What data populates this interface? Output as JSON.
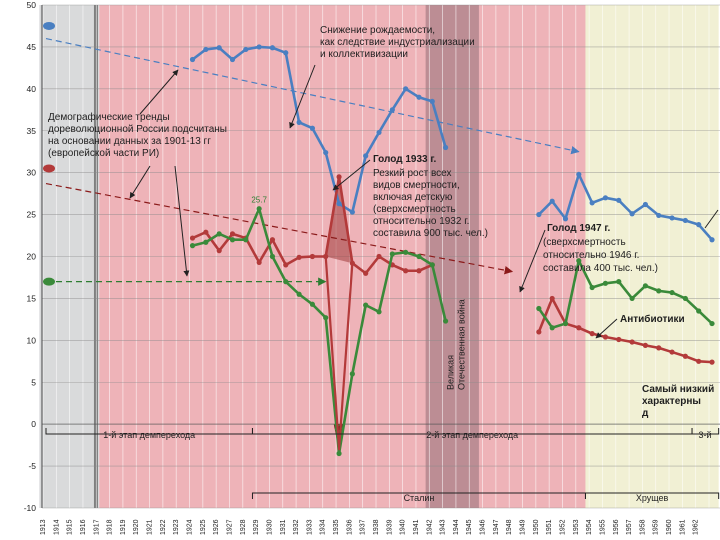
{
  "chart_data": {
    "type": "line",
    "ylim": [
      -10,
      50
    ],
    "y_ticks": [
      -10,
      -5,
      0,
      5,
      10,
      15,
      20,
      25,
      30,
      35,
      40,
      45,
      50
    ],
    "x_range": [
      1913,
      1963
    ],
    "x_tick_labels": [
      "1913",
      "1914",
      "1915",
      "1916",
      "1917",
      "1918",
      "1919",
      "1920",
      "1921",
      "1922",
      "1923",
      "1924",
      "1925",
      "1926",
      "1927",
      "1928",
      "1929",
      "1930",
      "1931",
      "1932",
      "1933",
      "1934",
      "1935",
      "1936",
      "1937",
      "1938",
      "1939",
      "1940",
      "1941",
      "1942",
      "1943",
      "1944",
      "1945",
      "1946",
      "1947",
      "1948",
      "1949",
      "1950",
      "1951",
      "1952",
      "1953",
      "1954",
      "1955",
      "1956",
      "1957",
      "1958",
      "1959",
      "1960",
      "1961",
      "1962"
    ],
    "grid": true,
    "series": [
      {
        "key": "births",
        "color": "#4a7fc1",
        "segments": [
          [
            [
              1924,
              43.5
            ],
            [
              1925,
              44.7
            ],
            [
              1926,
              44.9
            ],
            [
              1927,
              43.5
            ],
            [
              1928,
              44.7
            ],
            [
              1929,
              45.0
            ],
            [
              1930,
              44.9
            ],
            [
              1931,
              44.3
            ],
            [
              1932,
              36.0
            ],
            [
              1933,
              35.3
            ],
            [
              1934,
              32.4
            ],
            [
              1935,
              26.3
            ],
            [
              1936,
              25.3
            ],
            [
              1937,
              32.0
            ],
            [
              1938,
              34.8
            ],
            [
              1939,
              37.5
            ],
            [
              1940,
              40.0
            ],
            [
              1941,
              39.0
            ],
            [
              1942,
              38.5
            ],
            [
              1943,
              33.0
            ]
          ],
          [
            [
              1950,
              25.0
            ],
            [
              1951,
              26.6
            ],
            [
              1952,
              24.5
            ],
            [
              1953,
              29.8
            ],
            [
              1954,
              26.4
            ],
            [
              1955,
              27.0
            ],
            [
              1956,
              26.7
            ],
            [
              1957,
              25.1
            ],
            [
              1958,
              26.2
            ],
            [
              1959,
              24.9
            ],
            [
              1960,
              24.6
            ],
            [
              1961,
              24.3
            ],
            [
              1962,
              23.8
            ],
            [
              1963,
              22.0
            ]
          ]
        ],
        "start_marker": 47.5
      },
      {
        "key": "deaths",
        "color": "#b33a3a",
        "segments": [
          [
            [
              1924,
              22.2
            ],
            [
              1925,
              22.9
            ],
            [
              1926,
              20.7
            ],
            [
              1927,
              22.7
            ],
            [
              1928,
              22.2
            ],
            [
              1929,
              19.3
            ],
            [
              1930,
              22.0
            ],
            [
              1931,
              19.0
            ],
            [
              1932,
              19.9
            ],
            [
              1933,
              20.0
            ],
            [
              1934,
              20.0
            ],
            [
              1935,
              29.5
            ],
            [
              1936,
              19.2
            ],
            [
              1937,
              18.0
            ],
            [
              1938,
              20.0
            ],
            [
              1939,
              19.0
            ],
            [
              1940,
              18.3
            ],
            [
              1941,
              18.3
            ],
            [
              1942,
              19.0
            ]
          ],
          [
            [
              1950,
              11.0
            ],
            [
              1951,
              15.0
            ],
            [
              1952,
              12.0
            ],
            [
              1953,
              11.5
            ],
            [
              1954,
              10.8
            ],
            [
              1955,
              10.4
            ],
            [
              1956,
              10.1
            ],
            [
              1957,
              9.8
            ],
            [
              1958,
              9.4
            ],
            [
              1959,
              9.1
            ],
            [
              1960,
              8.6
            ],
            [
              1961,
              8.1
            ],
            [
              1962,
              7.5
            ],
            [
              1963,
              7.4
            ]
          ]
        ],
        "start_marker": 30.5,
        "dip": [
          [
            1934,
            20.0
          ],
          [
            1935,
            -3.0
          ],
          [
            1936,
            19.2
          ]
        ]
      },
      {
        "key": "natural_increase",
        "color": "#3a8a3a",
        "segments": [
          [
            [
              1924,
              21.3
            ],
            [
              1925,
              21.7
            ],
            [
              1926,
              22.7
            ],
            [
              1927,
              22.0
            ],
            [
              1928,
              22.0
            ],
            [
              1929,
              25.7
            ],
            [
              1930,
              20.0
            ],
            [
              1931,
              17.0
            ],
            [
              1932,
              15.5
            ],
            [
              1933,
              14.3
            ],
            [
              1934,
              12.7
            ],
            [
              1935,
              -3.5
            ],
            [
              1936,
              6.0
            ],
            [
              1937,
              14.2
            ],
            [
              1938,
              13.4
            ],
            [
              1939,
              20.3
            ],
            [
              1940,
              20.5
            ],
            [
              1941,
              20.0
            ],
            [
              1942,
              19.0
            ],
            [
              1943,
              12.3
            ]
          ],
          [
            [
              1950,
              13.8
            ],
            [
              1951,
              11.5
            ],
            [
              1952,
              12.0
            ],
            [
              1953,
              19.5
            ],
            [
              1954,
              16.3
            ],
            [
              1955,
              16.8
            ],
            [
              1956,
              17.0
            ],
            [
              1957,
              15.0
            ],
            [
              1958,
              16.5
            ],
            [
              1959,
              15.9
            ],
            [
              1960,
              15.7
            ],
            [
              1961,
              15.0
            ],
            [
              1962,
              13.5
            ],
            [
              1963,
              12.0
            ]
          ]
        ],
        "start_marker": 17.0
      }
    ],
    "trend_lines": [
      {
        "key": "births",
        "color": "#4a7fc1",
        "from": [
          1913,
          46.0
        ],
        "to": [
          1953,
          32.5
        ]
      },
      {
        "key": "deaths",
        "color": "#8b1a1a",
        "from": [
          1913,
          28.7
        ],
        "to": [
          1948,
          18.2
        ]
      },
      {
        "key": "natural_increase",
        "color": "#2e7d32",
        "from": [
          1913,
          17.0
        ],
        "to": [
          1934,
          17.0
        ]
      }
    ],
    "bands": [
      {
        "from": 1912.5,
        "to": 1917.0,
        "color": "#d9dadb"
      },
      {
        "from": 1917.0,
        "to": 1953.5,
        "color": "#eeb3b8"
      },
      {
        "from": 1953.5,
        "to": 1963.5,
        "color": "#f1f0d4"
      },
      {
        "from": 1941.5,
        "to": 1945.5,
        "color": "#bc8d94"
      }
    ],
    "point_label": {
      "text": "25.7",
      "x": 1929,
      "y": 25.7
    },
    "annotations": {
      "births_decline": [
        "Снижение рождаемости,",
        "как следствие индустриализации",
        "и коллективизации"
      ],
      "prerevolution": [
        "Демографические тренды",
        "дореволюционной России подсчитаны",
        "на основании данных за 1901-13 гг",
        "(европейской части РИ)"
      ],
      "famine_1933_title": "Голод 1933 г.",
      "famine_1933_body": [
        "Резкий рост всех",
        "видов смертности,",
        "включая детскую",
        "(сверхсмертность",
        "относительно 1932 г.",
        "составила 900 тыс. чел.)"
      ],
      "famine_1947_title": "Голод 1947 г.",
      "famine_1947_body": [
        "(сверхсмертность",
        "относительно 1946 г.",
        "составила 400 тыс. чел.)"
      ],
      "antibiotics": "Антибиотики",
      "ww2": [
        "Великая",
        "Отечественная война"
      ],
      "lowest": [
        "Самый низкий",
        "характерны",
        "д"
      ]
    },
    "periods": [
      {
        "label": "1-й этап демперехода",
        "from": 1913,
        "to": 1928.5
      },
      {
        "label": "2-й этап демперехода",
        "from": 1928.5,
        "to": 1961.5
      },
      {
        "label": "3-й",
        "from": 1961.5,
        "to": 1963.5
      }
    ],
    "rulers": [
      {
        "label": "Сталин",
        "from": 1928.5,
        "to": 1953.5
      },
      {
        "label": "Хрущев",
        "from": 1953.5,
        "to": 1963.5
      }
    ]
  }
}
